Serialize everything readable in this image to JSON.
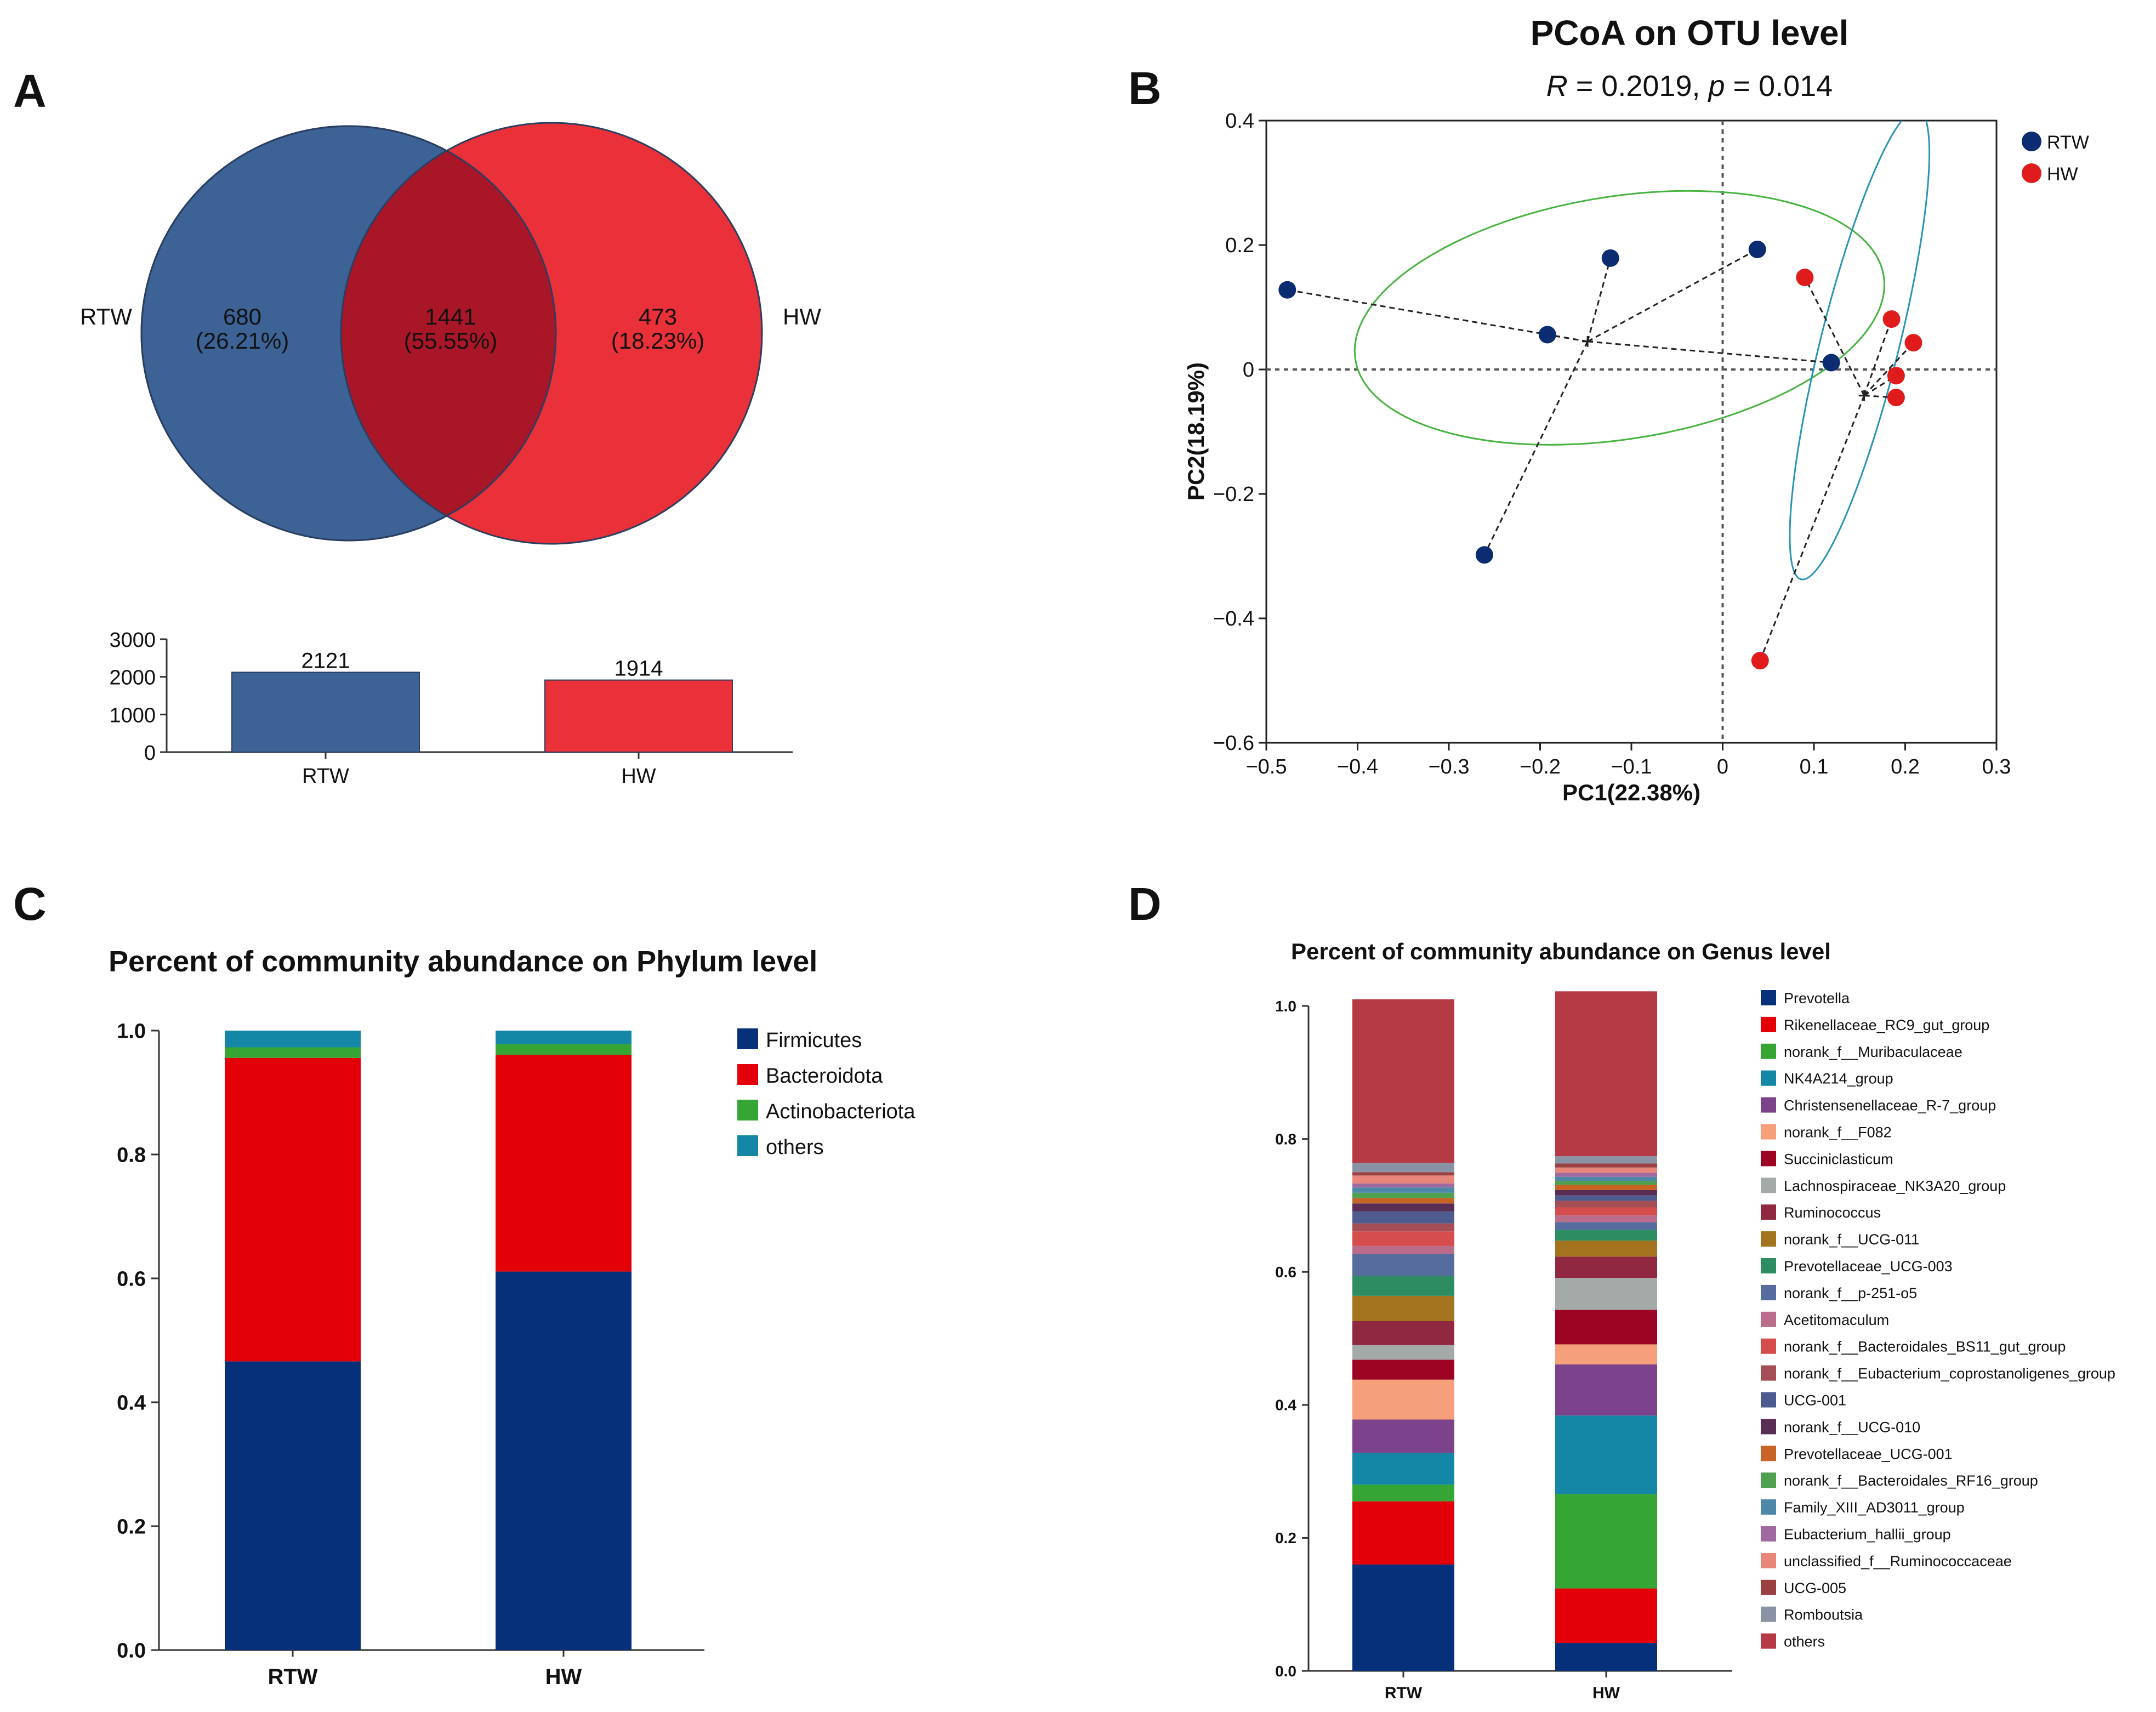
{
  "panel_labels": {
    "a": "A",
    "b": "B",
    "c": "C",
    "d": "D"
  },
  "colors": {
    "rtw": "#3c6296",
    "hw": "#ea3038",
    "overlap": "#a91628",
    "pcoa_rtw": "#0c2c72",
    "pcoa_hw": "#e01b1b",
    "ellipse_rtw": "#47b33f",
    "ellipse_hw": "#2a93b5"
  },
  "chart_data": [
    {
      "id": "venn",
      "type": "venn",
      "sets": [
        {
          "name": "RTW",
          "unique_count": "680",
          "unique_percent": "(26.21%)"
        },
        {
          "name": "HW",
          "unique_count": "473",
          "unique_percent": "(18.23%)"
        }
      ],
      "overlap": {
        "count": "1441",
        "percent": "(55.55%)"
      }
    },
    {
      "id": "venn_totals",
      "type": "bar",
      "categories": [
        "RTW",
        "HW"
      ],
      "values": [
        2121,
        1914
      ],
      "value_labels": [
        "2121",
        "1914"
      ],
      "yticks": [
        "3000",
        "2000",
        "1000",
        "0"
      ],
      "ytick_values": [
        3000,
        2000,
        1000,
        0
      ],
      "ylim": [
        0,
        3000
      ]
    },
    {
      "id": "pcoa",
      "type": "scatter",
      "title": "PCoA on OTU level",
      "subtitle": {
        "r_label": "R",
        "r_value": " = 0.2019, ",
        "p_label": "p",
        "p_value": " = 0.014"
      },
      "xlabel": "PC1(22.38%)",
      "ylabel": "PC2(18.19%)",
      "xlim": [
        -0.5,
        0.3
      ],
      "ylim": [
        -0.6,
        0.4
      ],
      "xticks": [
        -0.5,
        -0.4,
        -0.3,
        -0.2,
        -0.1,
        0,
        0.1,
        0.2,
        0.3
      ],
      "xtick_labels": [
        "−0.5",
        "−0.4",
        "−0.3",
        "−0.2",
        "−0.1",
        "0",
        "0.1",
        "0.2",
        "0.3"
      ],
      "yticks": [
        0.4,
        0.2,
        0,
        -0.2,
        -0.4,
        -0.6
      ],
      "ytick_labels": [
        "0.4",
        "0.2",
        "0",
        "−0.2",
        "−0.4",
        "−0.6"
      ],
      "series": [
        {
          "name": "RTW",
          "centroid": {
            "x": -0.148,
            "y": 0.045
          },
          "points": [
            {
              "x": -0.477,
              "y": 0.128
            },
            {
              "x": -0.192,
              "y": 0.056
            },
            {
              "x": -0.123,
              "y": 0.179
            },
            {
              "x": 0.038,
              "y": 0.193
            },
            {
              "x": 0.119,
              "y": 0.011
            },
            {
              "x": -0.261,
              "y": -0.298
            }
          ],
          "ellipse": {
            "cx": -0.113,
            "cy": 0.083,
            "rx": 0.293,
            "ry": 0.195,
            "angle": -9
          }
        },
        {
          "name": "HW",
          "centroid": {
            "x": 0.155,
            "y": -0.042
          },
          "points": [
            {
              "x": 0.09,
              "y": 0.148
            },
            {
              "x": 0.185,
              "y": 0.081
            },
            {
              "x": 0.209,
              "y": 0.043
            },
            {
              "x": 0.19,
              "y": -0.01
            },
            {
              "x": 0.19,
              "y": -0.045
            },
            {
              "x": 0.041,
              "y": -0.468
            }
          ],
          "ellipse": {
            "cx": 0.15,
            "cy": 0.04,
            "rx": 0.265,
            "ry": 0.063,
            "angle": 104
          }
        }
      ]
    },
    {
      "id": "phylum",
      "type": "bar",
      "stacked": true,
      "title": "Percent of community abundance on Phylum level",
      "categories": [
        "RTW",
        "HW"
      ],
      "ylim": [
        0,
        1.0
      ],
      "yticks": [
        "1.0",
        "0.8",
        "0.6",
        "0.4",
        "0.2",
        "0.0"
      ],
      "ytick_values": [
        1.0,
        0.8,
        0.6,
        0.4,
        0.2,
        0.0
      ],
      "series": [
        {
          "name": "Firmicutes",
          "color": "#06307a",
          "values": [
            0.466,
            0.611
          ]
        },
        {
          "name": "Bacteroidota",
          "color": "#e30008",
          "values": [
            0.49,
            0.35
          ]
        },
        {
          "name": "Actinobacteriota",
          "color": "#35a633",
          "values": [
            0.017,
            0.017
          ]
        },
        {
          "name": "others",
          "color": "#1487a6",
          "values": [
            0.027,
            0.022
          ]
        }
      ]
    },
    {
      "id": "genus",
      "type": "bar",
      "stacked": true,
      "title": "Percent of community abundance on Genus level",
      "categories": [
        "RTW",
        "HW"
      ],
      "ylim": [
        0,
        1.0
      ],
      "yticks": [
        "1.0",
        "0.8",
        "0.6",
        "0.4",
        "0.2",
        "0.0"
      ],
      "ytick_values": [
        1.0,
        0.8,
        0.6,
        0.4,
        0.2,
        0.0
      ],
      "series": [
        {
          "name": "Prevotella",
          "color": "#06307a",
          "values": [
            0.16,
            0.042
          ]
        },
        {
          "name": "Rikenellaceae_RC9_gut_group",
          "color": "#e30008",
          "values": [
            0.095,
            0.082
          ]
        },
        {
          "name": "norank_f__Muribaculaceae",
          "color": "#35a633",
          "values": [
            0.025,
            0.142
          ]
        },
        {
          "name": "NK4A214_group",
          "color": "#1487a6",
          "values": [
            0.048,
            0.118
          ]
        },
        {
          "name": "Christensenellaceae_R-7_group",
          "color": "#7d428c",
          "values": [
            0.05,
            0.077
          ]
        },
        {
          "name": "norank_f__F082",
          "color": "#f5a07a",
          "values": [
            0.06,
            0.03
          ]
        },
        {
          "name": "Succiniclasticum",
          "color": "#9d0323",
          "values": [
            0.03,
            0.052
          ]
        },
        {
          "name": "Lachnospiraceae_NK3A20_group",
          "color": "#a4aaa8",
          "values": [
            0.022,
            0.048
          ]
        },
        {
          "name": "Ruminococcus",
          "color": "#8f2840",
          "values": [
            0.036,
            0.032
          ]
        },
        {
          "name": "norank_f__UCG-011",
          "color": "#a3731d",
          "values": [
            0.038,
            0.024
          ]
        },
        {
          "name": "Prevotellaceae_UCG-003",
          "color": "#2e8c62",
          "values": [
            0.03,
            0.016
          ]
        },
        {
          "name": "norank_f__p-251-o5",
          "color": "#566c9e",
          "values": [
            0.033,
            0.012
          ]
        },
        {
          "name": "Acetitomaculum",
          "color": "#bb6c8a",
          "values": [
            0.012,
            0.01
          ]
        },
        {
          "name": "norank_f__Bacteroidales_BS11_gut_group",
          "color": "#d54d4d",
          "values": [
            0.022,
            0.012
          ]
        },
        {
          "name": "norank_f__Eubacterium_coprostanoligenes_group",
          "color": "#a54e55",
          "values": [
            0.012,
            0.01
          ]
        },
        {
          "name": "UCG-001",
          "color": "#4d5b8f",
          "values": [
            0.018,
            0.008
          ]
        },
        {
          "name": "norank_f__UCG-010",
          "color": "#5a2d55",
          "values": [
            0.012,
            0.008
          ]
        },
        {
          "name": "Prevotellaceae_UCG-001",
          "color": "#c86425",
          "values": [
            0.008,
            0.008
          ]
        },
        {
          "name": "norank_f__Bacteroidales_RF16_group",
          "color": "#4fa04f",
          "values": [
            0.008,
            0.006
          ]
        },
        {
          "name": "Family_XIII_AD3011_group",
          "color": "#4e88a8",
          "values": [
            0.008,
            0.006
          ]
        },
        {
          "name": "Eubacterium_hallii_group",
          "color": "#a06aa0",
          "values": [
            0.006,
            0.006
          ]
        },
        {
          "name": "unclassified_f__Ruminococcaceae",
          "color": "#e8867c",
          "values": [
            0.012,
            0.008
          ]
        },
        {
          "name": "UCG-005",
          "color": "#9b4040",
          "values": [
            0.005,
            0.006
          ]
        },
        {
          "name": "Romboutsia",
          "color": "#8a93a6",
          "values": [
            0.014,
            0.011
          ]
        },
        {
          "name": "others",
          "color": "#b63a45",
          "values": [
            0.246,
            0.248
          ]
        }
      ]
    }
  ]
}
